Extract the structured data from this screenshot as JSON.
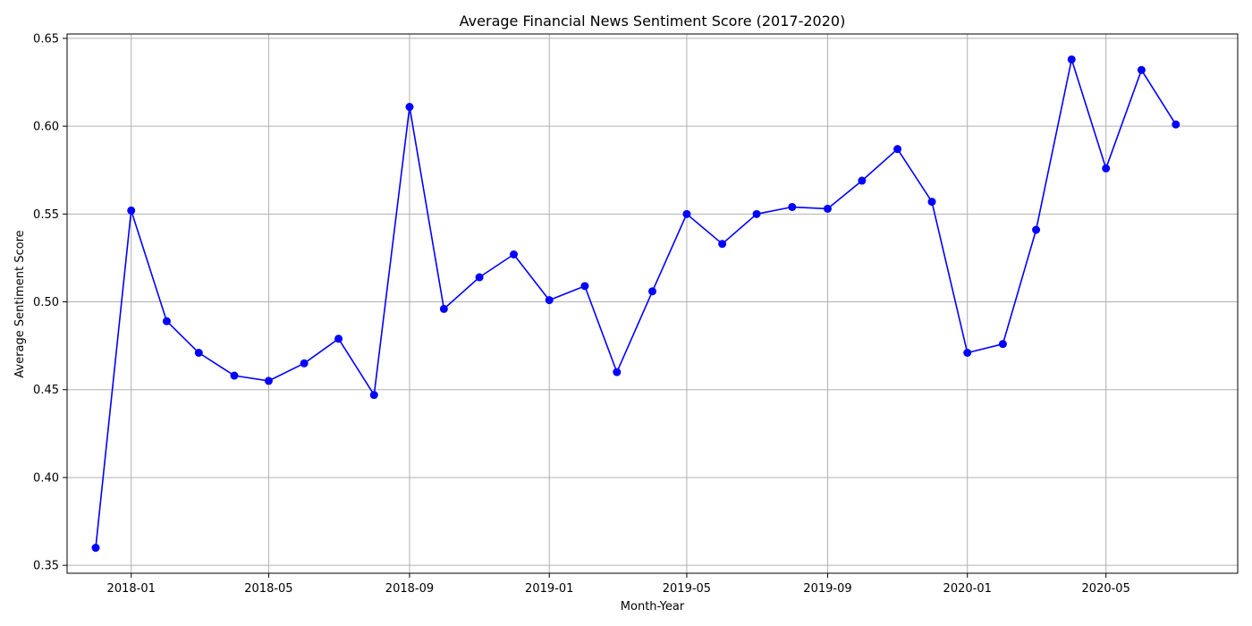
{
  "chart_data": {
    "type": "line",
    "title": "Average Financial News Sentiment Score (2017-2020)",
    "xlabel": "Month-Year",
    "ylabel": "Average Sentiment Score",
    "grid": true,
    "x_ticks": [
      "2018-01",
      "2018-05",
      "2018-09",
      "2019-01",
      "2019-05",
      "2019-09",
      "2020-01",
      "2020-05"
    ],
    "y_ticks": [
      "0.35",
      "0.40",
      "0.45",
      "0.50",
      "0.55",
      "0.60",
      "0.65"
    ],
    "xlim": [
      "2017-11-06",
      "2020-08-24"
    ],
    "ylim": [
      0.3455,
      0.6525
    ],
    "series": [
      {
        "color": "#0000ff",
        "marker": "circle",
        "x": [
          "2017-12-01",
          "2018-01-01",
          "2018-02-01",
          "2018-03-01",
          "2018-04-01",
          "2018-05-01",
          "2018-06-01",
          "2018-07-01",
          "2018-08-01",
          "2018-09-01",
          "2018-10-01",
          "2018-11-01",
          "2018-12-01",
          "2019-01-01",
          "2019-02-01",
          "2019-03-01",
          "2019-04-01",
          "2019-05-01",
          "2019-06-01",
          "2019-07-01",
          "2019-08-01",
          "2019-09-01",
          "2019-10-01",
          "2019-11-01",
          "2019-12-01",
          "2020-01-01",
          "2020-02-01",
          "2020-03-01",
          "2020-04-01",
          "2020-05-01",
          "2020-06-01",
          "2020-07-01"
        ],
        "y": [
          0.36,
          0.552,
          0.489,
          0.471,
          0.458,
          0.455,
          0.465,
          0.479,
          0.447,
          0.611,
          0.496,
          0.514,
          0.527,
          0.501,
          0.509,
          0.46,
          0.506,
          0.55,
          0.533,
          0.55,
          0.554,
          0.553,
          0.569,
          0.587,
          0.557,
          0.471,
          0.476,
          0.541,
          0.638,
          0.576,
          0.632,
          0.601
        ]
      }
    ]
  }
}
